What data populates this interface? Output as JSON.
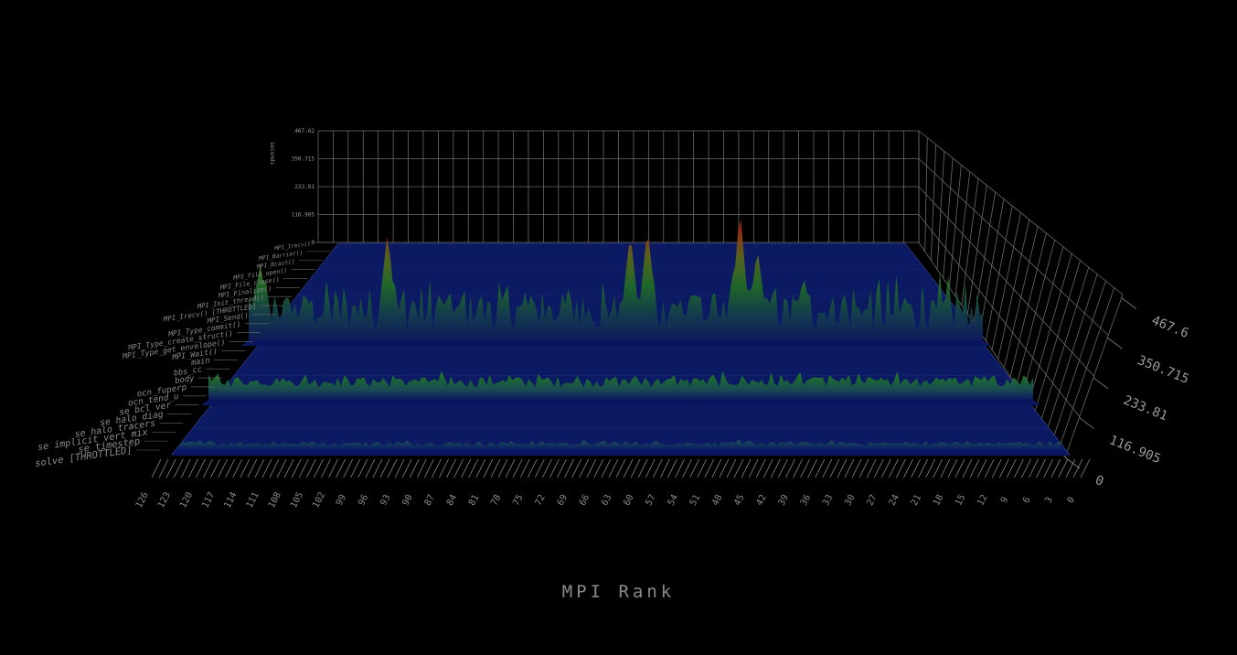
{
  "chart_data": {
    "type": "area",
    "title": "",
    "xlabel": "MPI Rank",
    "ylabel": "seconds",
    "x_ticks": [
      "126",
      "123",
      "120",
      "117",
      "114",
      "111",
      "108",
      "105",
      "102",
      "99",
      "96",
      "93",
      "90",
      "87",
      "84",
      "81",
      "78",
      "75",
      "72",
      "69",
      "66",
      "63",
      "60",
      "57",
      "54",
      "51",
      "48",
      "45",
      "42",
      "39",
      "36",
      "33",
      "30",
      "27",
      "24",
      "21",
      "18",
      "15",
      "12",
      "9",
      "6",
      "3",
      "0"
    ],
    "z_ticks": [
      "0",
      "116.905",
      "233.81",
      "350.715",
      "467.6"
    ],
    "back_wall_ticks": [
      "0",
      "116.905",
      "233.81",
      "350.715",
      "467.62"
    ],
    "function_labels": [
      "MPI_Irecv()",
      "MPI_Barrier()",
      "MPI_Bcast()",
      "MPI_File_open()",
      "MPI_File_close()",
      "MPI_Finalize()",
      "MPI_Init_thread()",
      "MPI_Irecv() [THROTTLED]",
      "MPI_Send()",
      "MPI_Type_commit()",
      "MPI_Type_create_struct()",
      "MPI_Type_get_envelope()",
      "MPI_Wait()",
      "main",
      "bbs_cc",
      "body",
      "ocn_fuperp",
      "ocn_tend_u",
      "se bcl ver",
      "se halo diag",
      "se halo tracers",
      "se implicit vert mix",
      "se timestep",
      "solve [THROTTLED]"
    ],
    "z_max": 467.62,
    "series": [
      {
        "label_index": 7,
        "peaks": [
          [
            125,
            0.55
          ],
          [
            103,
            0.78
          ],
          [
            61,
            0.78
          ],
          [
            58,
            0.82
          ],
          [
            42,
            0.95
          ],
          [
            39,
            0.66
          ],
          [
            31,
            0.45
          ]
        ],
        "base": 0.16,
        "noise": 0.14
      },
      {
        "label_index": 15,
        "peaks": [],
        "base": 0.16,
        "noise": 0.05
      },
      {
        "label_index": 22,
        "peaks": [],
        "base": 0.08,
        "noise": 0.025
      }
    ],
    "grid": true
  }
}
